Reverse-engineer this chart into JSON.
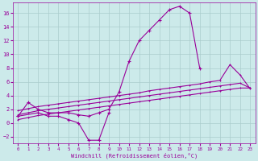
{
  "bg_color": "#cceaea",
  "line_color": "#990099",
  "grid_color": "#aacccc",
  "xlabel": "Windchill (Refroidissement éolien,°C)",
  "ylim": [
    -3,
    17.5
  ],
  "xlim": [
    -0.5,
    23.5
  ],
  "yticks": [
    -2,
    0,
    2,
    4,
    6,
    8,
    10,
    12,
    14,
    16
  ],
  "xticks": [
    0,
    1,
    2,
    3,
    4,
    5,
    6,
    7,
    8,
    9,
    10,
    11,
    12,
    13,
    14,
    15,
    16,
    17,
    18,
    19,
    20,
    21,
    22,
    23
  ],
  "curve1_x": [
    0,
    1,
    2,
    3,
    4,
    5,
    6,
    7,
    8,
    9,
    10,
    11,
    12,
    13,
    14,
    15,
    16,
    17,
    18
  ],
  "curve1_y": [
    1.0,
    3.0,
    2.0,
    1.5,
    1.5,
    1.5,
    1.2,
    1.0,
    1.5,
    2.0,
    4.5,
    9.0,
    12.0,
    13.5,
    15.0,
    16.5,
    17.0,
    16.0,
    8.0
  ],
  "curve2_x": [
    0,
    2,
    3,
    4,
    5,
    6,
    7,
    8,
    9
  ],
  "curve2_y": [
    1.0,
    1.5,
    1.0,
    1.0,
    0.5,
    0.0,
    -2.5,
    -2.5,
    1.5
  ],
  "line_top_x": [
    0,
    1,
    2,
    3,
    4,
    5,
    6,
    7,
    8,
    9,
    10,
    11,
    12,
    13,
    14,
    15,
    16,
    17,
    18,
    19,
    20,
    21,
    22,
    23
  ],
  "line_top_y": [
    1.8,
    2.1,
    2.4,
    2.6,
    2.8,
    3.0,
    3.2,
    3.4,
    3.6,
    3.8,
    4.0,
    4.2,
    4.4,
    4.7,
    4.9,
    5.1,
    5.3,
    5.5,
    5.7,
    6.0,
    6.2,
    8.5,
    7.0,
    5.0
  ],
  "line_mid_x": [
    0,
    1,
    2,
    3,
    4,
    5,
    6,
    7,
    8,
    9,
    10,
    11,
    12,
    13,
    14,
    15,
    16,
    17,
    18,
    19,
    20,
    21,
    22,
    23
  ],
  "line_mid_y": [
    1.2,
    1.5,
    1.8,
    2.0,
    2.2,
    2.4,
    2.6,
    2.8,
    3.0,
    3.2,
    3.4,
    3.6,
    3.8,
    4.0,
    4.2,
    4.4,
    4.6,
    4.8,
    5.0,
    5.2,
    5.4,
    5.6,
    5.8,
    5.1
  ],
  "line_bot_x": [
    0,
    1,
    2,
    3,
    4,
    5,
    6,
    7,
    8,
    9,
    10,
    11,
    12,
    13,
    14,
    15,
    16,
    17,
    18,
    19,
    20,
    21,
    22,
    23
  ],
  "line_bot_y": [
    0.5,
    0.8,
    1.1,
    1.3,
    1.5,
    1.7,
    1.9,
    2.1,
    2.3,
    2.5,
    2.7,
    2.9,
    3.1,
    3.3,
    3.5,
    3.7,
    3.9,
    4.1,
    4.3,
    4.5,
    4.7,
    4.9,
    5.1,
    5.1
  ]
}
